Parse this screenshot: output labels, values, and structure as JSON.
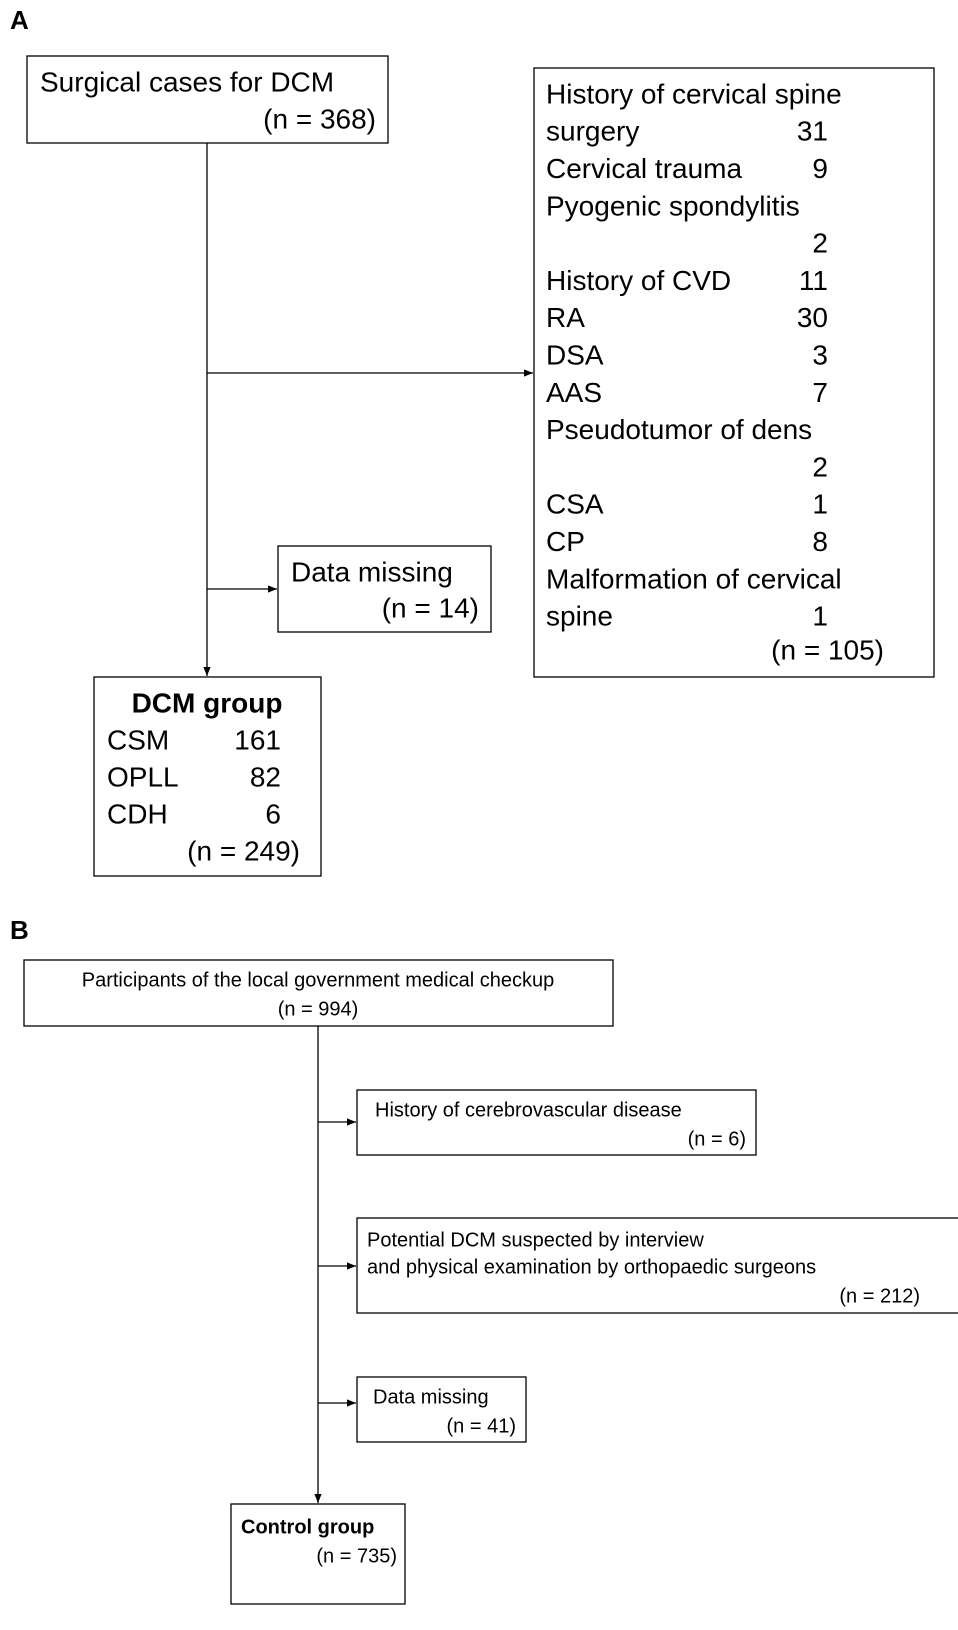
{
  "panel_a": {
    "label": "A",
    "start": {
      "title": "Surgical cases for DCM",
      "count": "(n = 368)"
    },
    "excluded": {
      "lines": [
        {
          "text": "History of cervical spine"
        },
        {
          "text": "surgery",
          "value": 31
        },
        {
          "text": "Cervical trauma",
          "value": 9
        },
        {
          "text": "Pyogenic spondylitis"
        },
        {
          "value": 2
        },
        {
          "text": "History of CVD",
          "value": 11
        },
        {
          "text": "RA",
          "value": 30
        },
        {
          "text": "DSA",
          "value": 3
        },
        {
          "text": "AAS",
          "value": 7
        },
        {
          "text": "Pseudotumor of dens"
        },
        {
          "value": 2
        },
        {
          "text": "CSA",
          "value": 1
        },
        {
          "text": "CP",
          "value": 8
        },
        {
          "text": "Malformation of cervical"
        },
        {
          "text": "spine",
          "value": 1
        }
      ],
      "count": "(n = 105)"
    },
    "missing": {
      "title": "Data missing",
      "count": "(n = 14)"
    },
    "result": {
      "title": "DCM group",
      "rows": [
        {
          "name": "CSM",
          "value": 161
        },
        {
          "name": "OPLL",
          "value": 82
        },
        {
          "name": "CDH",
          "value": 6
        }
      ],
      "count": "(n = 249)"
    }
  },
  "panel_b": {
    "label": "B",
    "start": {
      "title": "Participants of the local government medical checkup",
      "count": "(n = 994)"
    },
    "excluded_cvd": {
      "title": "History of cerebrovascular disease",
      "count": "(n = 6)"
    },
    "excluded_dcm": {
      "lines": [
        "Potential DCM suspected by interview",
        "and physical examination by orthopaedic surgeons"
      ],
      "count": "(n = 212)"
    },
    "missing": {
      "title": "Data missing",
      "count": "(n = 41)"
    },
    "result": {
      "title": "Control group",
      "count": "(n = 735)"
    }
  }
}
